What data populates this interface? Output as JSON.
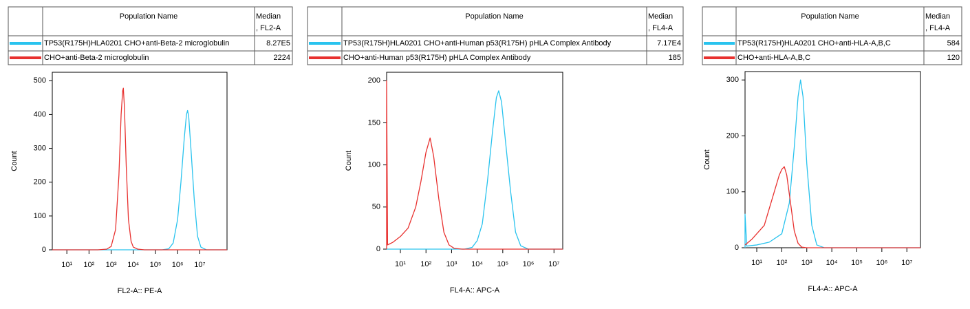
{
  "chart_data": [
    {
      "type": "line",
      "x_scale": "log",
      "xlabel": "FL2-A:: PE-A",
      "ylabel": "Count",
      "name_header": "Population Name",
      "median_header": [
        "Median",
        ", FL2-A"
      ],
      "xlim": [
        2.2,
        170000000
      ],
      "ylim": [
        0,
        525
      ],
      "xticks": [
        {
          "value": 10,
          "label": "10¹"
        },
        {
          "value": 100,
          "label": "10²"
        },
        {
          "value": 1000,
          "label": "10³"
        },
        {
          "value": 10000,
          "label": "10⁴"
        },
        {
          "value": 100000,
          "label": "10⁵"
        },
        {
          "value": 1000000,
          "label": "10⁶"
        },
        {
          "value": 10000000,
          "label": "10⁷"
        }
      ],
      "yticks": [
        0,
        100,
        200,
        300,
        400,
        500
      ],
      "series": [
        {
          "name": "TP53(R175H)HLA0201 CHO+anti-Beta-2 microglobulin",
          "color": "#29c3ee",
          "median": {
            "value": 827000,
            "label": "8.27E5"
          },
          "x": [
            2.2,
            199526,
            398107,
            630957,
            1000000,
            1412538,
            1995262,
            2511886,
            2818383,
            3162278,
            3981072,
            5623413,
            7943282,
            11220185,
            19952623,
            170000000
          ],
          "values": [
            0,
            0,
            3,
            20,
            90,
            200,
            330,
            400,
            412,
            395,
            300,
            150,
            40,
            8,
            0,
            0
          ]
        },
        {
          "name": "CHO+anti-Beta-2 microglobulin",
          "color": "#e8312f",
          "median": 2224,
          "x": [
            2.2,
            251,
            631,
            1000,
            1585,
            2239,
            2818,
            3311,
            3548,
            3981,
            4786,
            6026,
            7943,
            10000,
            15849,
            31623,
            170000000
          ],
          "values": [
            0,
            0,
            2,
            10,
            60,
            220,
            400,
            470,
            478,
            420,
            250,
            90,
            25,
            8,
            2,
            0,
            0
          ]
        }
      ]
    },
    {
      "type": "line",
      "x_scale": "log",
      "xlabel": "FL4-A:: APC-A",
      "ylabel": "Count",
      "name_header": "Population Name",
      "median_header": [
        "Median",
        ", FL4-A"
      ],
      "xlim": [
        2.9,
        22000000
      ],
      "ylim": [
        0,
        210
      ],
      "xticks": [
        {
          "value": 10,
          "label": "10¹"
        },
        {
          "value": 100,
          "label": "10²"
        },
        {
          "value": 1000,
          "label": "10³"
        },
        {
          "value": 10000,
          "label": "10⁴"
        },
        {
          "value": 100000,
          "label": "10⁵"
        },
        {
          "value": 1000000,
          "label": "10⁶"
        },
        {
          "value": 10000000,
          "label": "10⁷"
        }
      ],
      "yticks": [
        0,
        50,
        100,
        150,
        200
      ],
      "series": [
        {
          "name": "TP53(R175H)HLA0201 CHO+anti-Human p53(R175H) pHLA Complex Antibody",
          "color": "#29c3ee",
          "median": {
            "value": 71700,
            "label": "7.17E4"
          },
          "x": [
            2.9,
            3162,
            6310,
            10000,
            15849,
            25119,
            39811,
            56234,
            69183,
            89125,
            125893,
            199526,
            316228,
            501187,
            1000000,
            22000000
          ],
          "values": [
            0,
            0,
            2,
            10,
            30,
            80,
            140,
            180,
            188,
            175,
            130,
            70,
            20,
            4,
            0,
            0
          ]
        },
        {
          "name": "CHO+anti-Human p53(R175H) pHLA Complex Antibody",
          "color": "#e8312f",
          "median": 185,
          "x": [
            2.9,
            2.9,
            3.16,
            5.01,
            10,
            20,
            39.8,
            63.1,
            100,
            145,
            200,
            316,
            501,
            794,
            1259,
            2512,
            22000000
          ],
          "values": [
            0,
            200,
            5,
            8,
            15,
            25,
            50,
            80,
            115,
            132,
            110,
            60,
            20,
            5,
            1,
            0,
            0
          ]
        }
      ]
    },
    {
      "type": "line",
      "x_scale": "log",
      "xlabel": "FL4-A:: APC-A",
      "ylabel": "Count",
      "name_header": "Population Name",
      "median_header": [
        "Median",
        ", FL4-A"
      ],
      "xlim": [
        3.4,
        35000000
      ],
      "ylim": [
        0,
        315
      ],
      "xticks": [
        {
          "value": 10,
          "label": "10¹"
        },
        {
          "value": 100,
          "label": "10²"
        },
        {
          "value": 1000,
          "label": "10³"
        },
        {
          "value": 10000,
          "label": "10⁴"
        },
        {
          "value": 100000,
          "label": "10⁵"
        },
        {
          "value": 1000000,
          "label": "10⁶"
        },
        {
          "value": 10000000,
          "label": "10⁷"
        }
      ],
      "yticks": [
        0,
        100,
        200,
        300
      ],
      "series": [
        {
          "name": "TP53(R175H)HLA0201 CHO+anti-HLA-A,B,C",
          "color": "#29c3ee",
          "median": 584,
          "x": [
            3.4,
            3.4,
            3.98,
            10,
            31.6,
            100,
            200,
            316,
            447,
            562,
            708,
            1000,
            1585,
            2512,
            5012,
            35000000
          ],
          "values": [
            0,
            60,
            3,
            5,
            10,
            25,
            80,
            180,
            270,
            300,
            270,
            150,
            40,
            5,
            0,
            0
          ]
        },
        {
          "name": "CHO+anti-HLA-A,B,C",
          "color": "#e8312f",
          "median": 120,
          "x": [
            3.4,
            6.31,
            10,
            20,
            31.6,
            50.1,
            79.4,
            100,
            126,
            158,
            224,
            316,
            447,
            631,
            1000,
            35000000
          ],
          "values": [
            5,
            15,
            25,
            40,
            70,
            100,
            130,
            140,
            145,
            130,
            80,
            30,
            8,
            1,
            0,
            0
          ]
        }
      ]
    }
  ]
}
